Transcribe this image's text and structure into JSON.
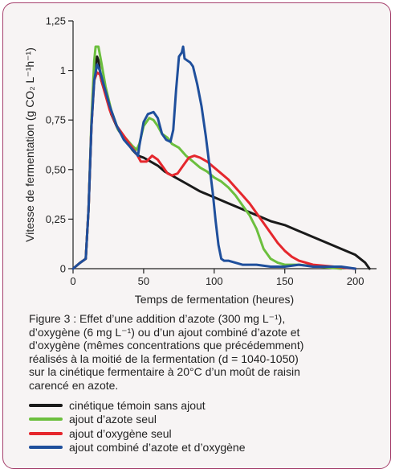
{
  "figure": {
    "caption_lines": [
      "Figure 3 : Effet d’une addition d’azote (300 mg L⁻¹),",
      "d’oxygène (6 mg L⁻¹) ou d’un ajout combiné d’azote et",
      "d’oxygène (mêmes concentrations que précédemment)",
      "réalisés à la moitié de la fermentation (d = 1040-1050)",
      "sur la cinétique fermentaire à 20°C d’un moût de raisin",
      "carencé en azote."
    ]
  },
  "chart_data": {
    "type": "line",
    "title": "",
    "xlabel": "Temps de fermentation (heures)",
    "ylabel": "Vitesse de fermentation (g CO₂ L⁻¹h⁻¹)",
    "xlim": [
      0,
      215
    ],
    "ylim": [
      0,
      1.25
    ],
    "x_ticks": [
      0,
      50,
      100,
      150,
      200
    ],
    "x_tick_labels": [
      "0",
      "50",
      "100",
      "150",
      "200"
    ],
    "y_ticks": [
      0,
      0.25,
      0.5,
      0.75,
      1,
      1.25
    ],
    "y_tick_labels": [
      "0",
      "0,25",
      "0,50",
      "0,75",
      "1",
      "1,25"
    ],
    "grid": false,
    "legend_position": "bottom",
    "series": [
      {
        "name": "cinétique témoin sans ajout",
        "color": "#1a1a1a",
        "points": [
          [
            0,
            0
          ],
          [
            5,
            0.03
          ],
          [
            9,
            0.05
          ],
          [
            11,
            0.3
          ],
          [
            13,
            0.72
          ],
          [
            15,
            0.98
          ],
          [
            17,
            1.07
          ],
          [
            18,
            1.05
          ],
          [
            20,
            0.95
          ],
          [
            23,
            0.88
          ],
          [
            27,
            0.78
          ],
          [
            32,
            0.7
          ],
          [
            37,
            0.65
          ],
          [
            42,
            0.6
          ],
          [
            46,
            0.57
          ],
          [
            50,
            0.56
          ],
          [
            55,
            0.54
          ],
          [
            60,
            0.52
          ],
          [
            65,
            0.49
          ],
          [
            70,
            0.47
          ],
          [
            80,
            0.43
          ],
          [
            90,
            0.39
          ],
          [
            100,
            0.36
          ],
          [
            110,
            0.33
          ],
          [
            120,
            0.3
          ],
          [
            130,
            0.27
          ],
          [
            140,
            0.24
          ],
          [
            150,
            0.22
          ],
          [
            160,
            0.19
          ],
          [
            170,
            0.16
          ],
          [
            180,
            0.13
          ],
          [
            190,
            0.1
          ],
          [
            200,
            0.07
          ],
          [
            207,
            0.03
          ],
          [
            210,
            0.0
          ]
        ]
      },
      {
        "name": "ajout d’azote seul",
        "color": "#6cbf3e",
        "points": [
          [
            0,
            0
          ],
          [
            5,
            0.03
          ],
          [
            9,
            0.05
          ],
          [
            11,
            0.3
          ],
          [
            13,
            0.75
          ],
          [
            15,
            1.05
          ],
          [
            16,
            1.12
          ],
          [
            18,
            1.12
          ],
          [
            20,
            1.04
          ],
          [
            23,
            0.92
          ],
          [
            27,
            0.8
          ],
          [
            32,
            0.7
          ],
          [
            37,
            0.66
          ],
          [
            42,
            0.62
          ],
          [
            45,
            0.6
          ],
          [
            47,
            0.63
          ],
          [
            50,
            0.72
          ],
          [
            54,
            0.76
          ],
          [
            57,
            0.75
          ],
          [
            60,
            0.72
          ],
          [
            63,
            0.68
          ],
          [
            67,
            0.66
          ],
          [
            70,
            0.63
          ],
          [
            75,
            0.61
          ],
          [
            80,
            0.57
          ],
          [
            85,
            0.54
          ],
          [
            90,
            0.51
          ],
          [
            95,
            0.49
          ],
          [
            100,
            0.46
          ],
          [
            105,
            0.44
          ],
          [
            110,
            0.41
          ],
          [
            115,
            0.37
          ],
          [
            120,
            0.32
          ],
          [
            125,
            0.27
          ],
          [
            130,
            0.2
          ],
          [
            135,
            0.1
          ],
          [
            140,
            0.05
          ],
          [
            145,
            0.03
          ],
          [
            150,
            0.02
          ],
          [
            160,
            0.02
          ],
          [
            175,
            0.01
          ],
          [
            190,
            0.0
          ]
        ]
      },
      {
        "name": "ajout d’oxygène seul",
        "color": "#e5272d",
        "points": [
          [
            0,
            0
          ],
          [
            5,
            0.03
          ],
          [
            9,
            0.05
          ],
          [
            11,
            0.3
          ],
          [
            13,
            0.72
          ],
          [
            15,
            0.95
          ],
          [
            17,
            0.99
          ],
          [
            19,
            0.98
          ],
          [
            22,
            0.9
          ],
          [
            26,
            0.8
          ],
          [
            31,
            0.72
          ],
          [
            36,
            0.67
          ],
          [
            41,
            0.62
          ],
          [
            45,
            0.58
          ],
          [
            48,
            0.54
          ],
          [
            52,
            0.54
          ],
          [
            56,
            0.57
          ],
          [
            60,
            0.55
          ],
          [
            64,
            0.51
          ],
          [
            67,
            0.48
          ],
          [
            70,
            0.47
          ],
          [
            74,
            0.48
          ],
          [
            78,
            0.52
          ],
          [
            82,
            0.56
          ],
          [
            86,
            0.57
          ],
          [
            90,
            0.56
          ],
          [
            95,
            0.54
          ],
          [
            100,
            0.51
          ],
          [
            105,
            0.48
          ],
          [
            110,
            0.45
          ],
          [
            115,
            0.41
          ],
          [
            120,
            0.37
          ],
          [
            125,
            0.33
          ],
          [
            130,
            0.28
          ],
          [
            135,
            0.23
          ],
          [
            140,
            0.18
          ],
          [
            145,
            0.13
          ],
          [
            150,
            0.09
          ],
          [
            155,
            0.06
          ],
          [
            160,
            0.04
          ],
          [
            170,
            0.02
          ],
          [
            185,
            0.01
          ],
          [
            200,
            0.0
          ]
        ]
      },
      {
        "name": "ajout combiné d’azote et d’oxygène",
        "color": "#1f4f9c",
        "points": [
          [
            0,
            0
          ],
          [
            5,
            0.03
          ],
          [
            9,
            0.05
          ],
          [
            11,
            0.3
          ],
          [
            13,
            0.72
          ],
          [
            15,
            0.95
          ],
          [
            17,
            1.03
          ],
          [
            19,
            1.0
          ],
          [
            22,
            0.92
          ],
          [
            26,
            0.82
          ],
          [
            31,
            0.72
          ],
          [
            36,
            0.65
          ],
          [
            41,
            0.61
          ],
          [
            45,
            0.58
          ],
          [
            46,
            0.57
          ],
          [
            47,
            0.62
          ],
          [
            50,
            0.74
          ],
          [
            53,
            0.78
          ],
          [
            57,
            0.79
          ],
          [
            60,
            0.76
          ],
          [
            63,
            0.68
          ],
          [
            66,
            0.65
          ],
          [
            69,
            0.64
          ],
          [
            71,
            0.7
          ],
          [
            73,
            0.9
          ],
          [
            75,
            1.07
          ],
          [
            77,
            1.09
          ],
          [
            78,
            1.12
          ],
          [
            79,
            1.06
          ],
          [
            81,
            1.05
          ],
          [
            83,
            1.04
          ],
          [
            85,
            1.02
          ],
          [
            88,
            0.93
          ],
          [
            91,
            0.82
          ],
          [
            94,
            0.67
          ],
          [
            97,
            0.5
          ],
          [
            99,
            0.38
          ],
          [
            101,
            0.24
          ],
          [
            103,
            0.12
          ],
          [
            105,
            0.05
          ],
          [
            107,
            0.04
          ],
          [
            110,
            0.04
          ],
          [
            120,
            0.02
          ],
          [
            130,
            0.02
          ],
          [
            140,
            0.01
          ],
          [
            150,
            0.01
          ],
          [
            160,
            0.02
          ],
          [
            170,
            0.01
          ],
          [
            190,
            0.01
          ],
          [
            200,
            0.0
          ]
        ]
      }
    ]
  }
}
